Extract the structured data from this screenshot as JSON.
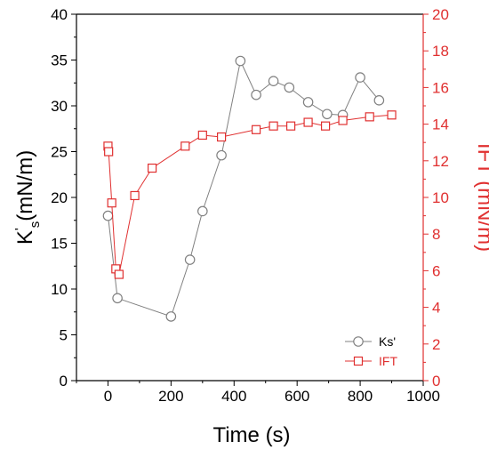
{
  "chart_data": {
    "type": "line",
    "title": "",
    "xlabel": "Time (s)",
    "ylabel_left": {
      "base": "K",
      "sup": "'",
      "sub": "s",
      "unit": "(mN/m)"
    },
    "ylabel_right": "IFT (mN/m)",
    "xlim": [
      -100,
      1000
    ],
    "ylim_left": [
      0,
      40
    ],
    "ylim_right": [
      0,
      20
    ],
    "xticks": [
      0,
      200,
      400,
      600,
      800,
      1000
    ],
    "yticks_left": [
      0,
      5,
      10,
      15,
      20,
      25,
      30,
      35,
      40
    ],
    "yticks_right": [
      0,
      2,
      4,
      6,
      8,
      10,
      12,
      14,
      16,
      18,
      20
    ],
    "grid": false,
    "legend_position": "bottom-right",
    "series": [
      {
        "name": "Ks'",
        "axis": "left",
        "color": "#808080",
        "marker": "circle",
        "x": [
          0,
          30,
          200,
          260,
          300,
          360,
          420,
          470,
          525,
          575,
          635,
          695,
          745,
          800,
          860
        ],
        "y": [
          18.0,
          9.0,
          7.0,
          13.2,
          18.5,
          24.6,
          34.9,
          31.2,
          32.7,
          32.0,
          30.4,
          29.1,
          29.0,
          33.1,
          30.6
        ]
      },
      {
        "name": "IFT",
        "axis": "right",
        "color": "#e03030",
        "marker": "square",
        "x": [
          0,
          2,
          12,
          25,
          35,
          85,
          140,
          245,
          300,
          360,
          470,
          525,
          580,
          635,
          690,
          745,
          830,
          900
        ],
        "y": [
          12.8,
          12.5,
          9.7,
          6.1,
          5.8,
          10.1,
          11.6,
          12.8,
          13.4,
          13.3,
          13.7,
          13.9,
          13.9,
          14.1,
          13.9,
          14.2,
          14.4,
          14.5
        ]
      }
    ],
    "colors": {
      "axis_left": "#000000",
      "axis_right": "#e03030"
    }
  }
}
